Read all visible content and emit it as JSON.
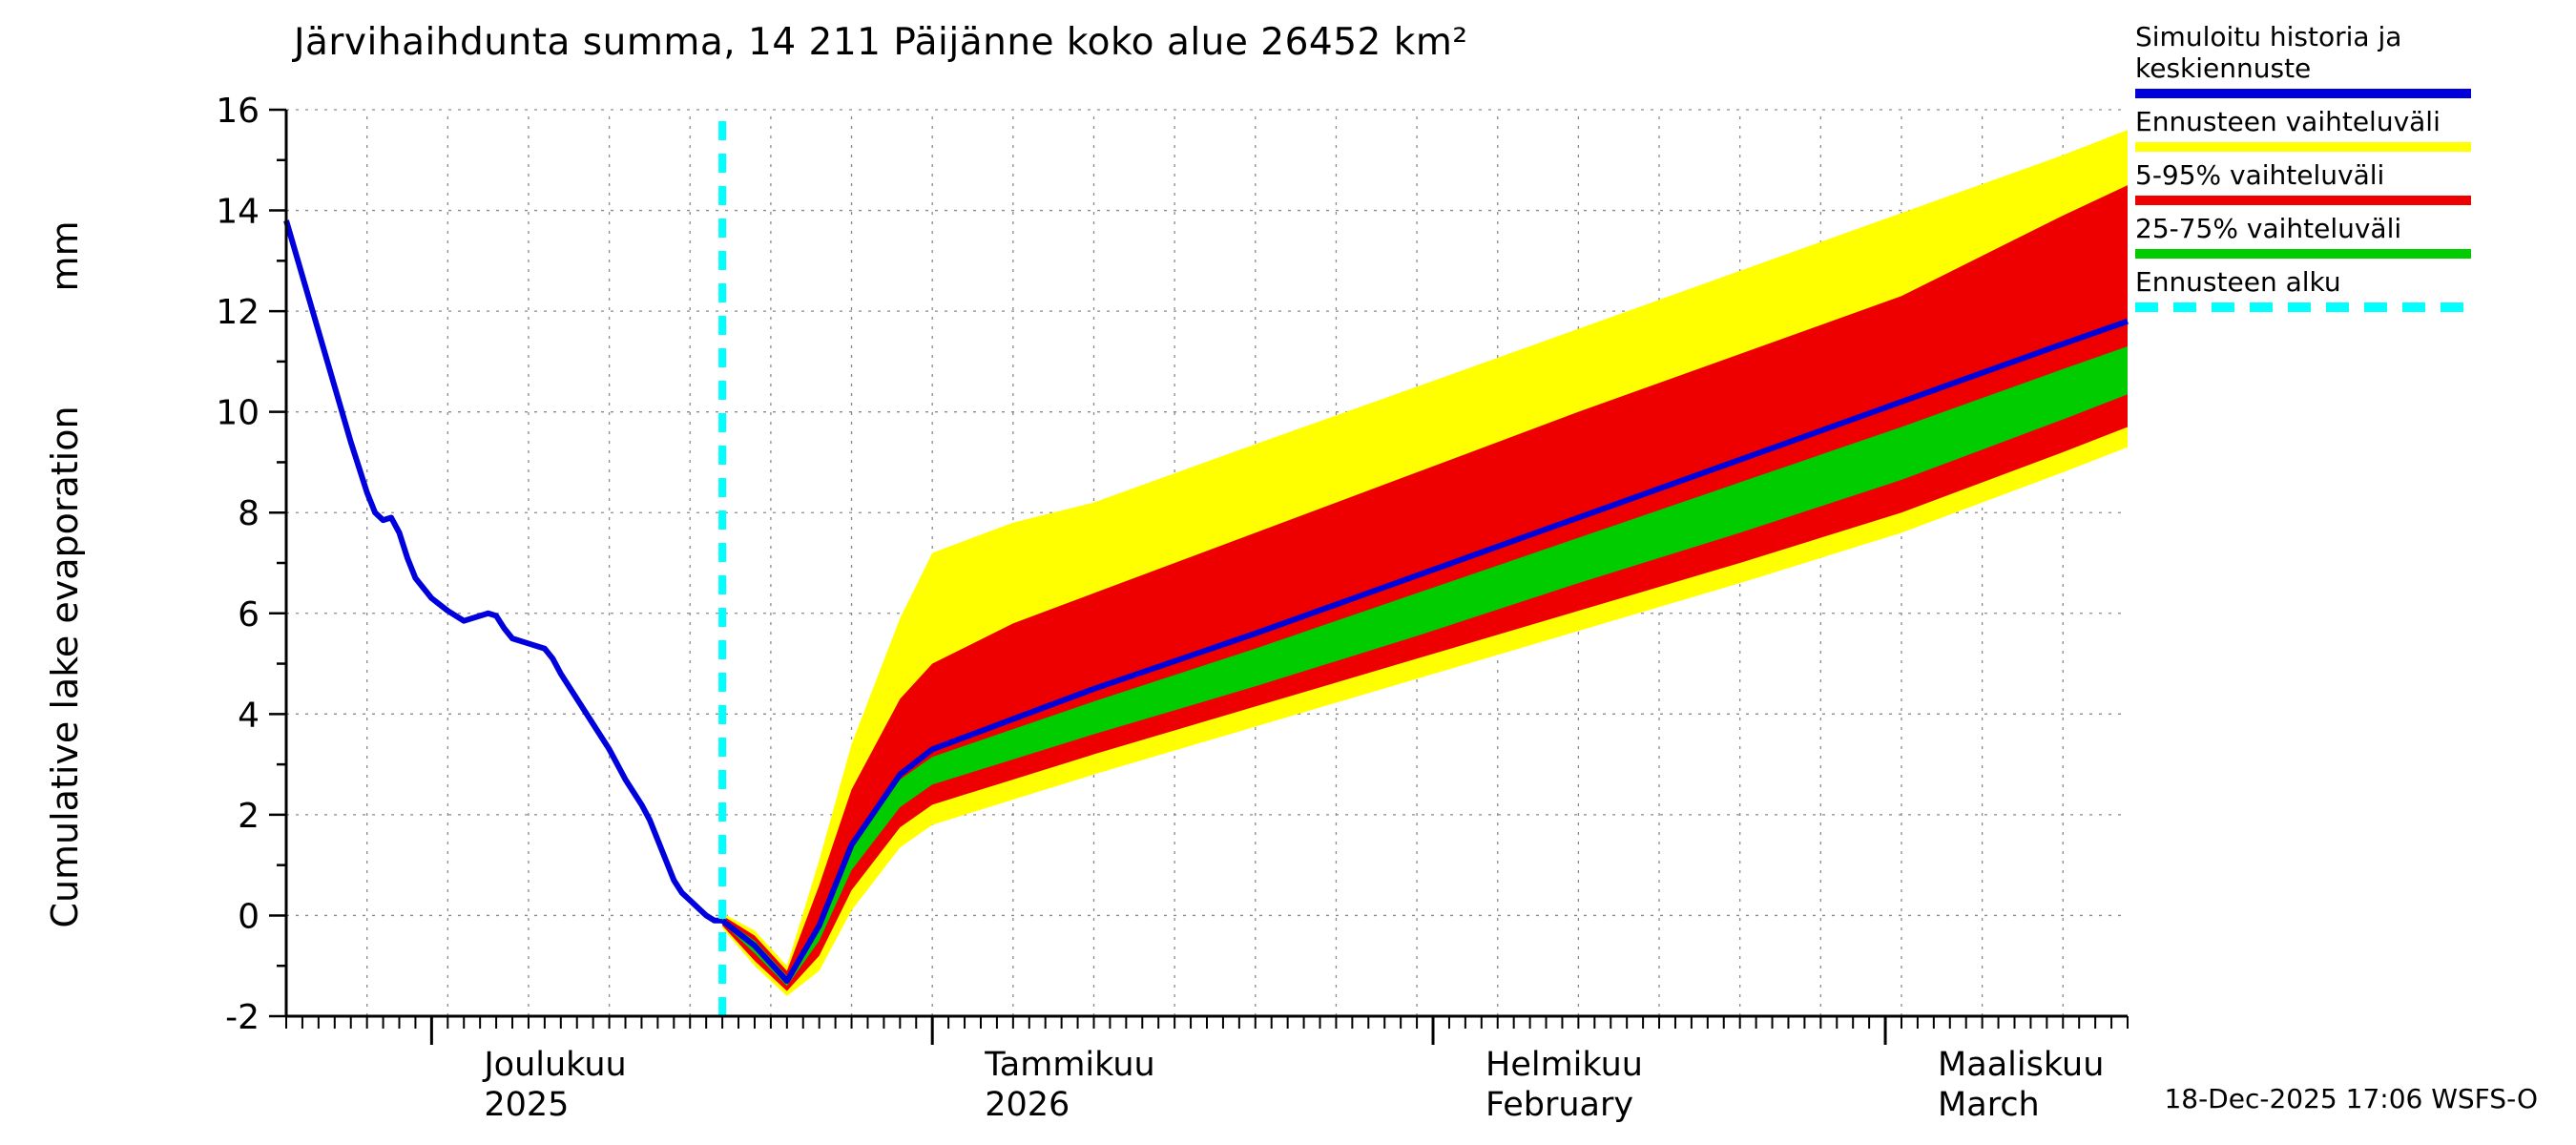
{
  "title": "Järvihaihdunta summa, 14 211 Päijänne koko alue 26452 km²",
  "timestamp": "18-Dec-2025 17:06 WSFS-O",
  "y_axis": {
    "label": "Cumulative lake evaporation",
    "unit": "mm"
  },
  "legend": {
    "items": [
      {
        "label": "Simuloitu historia ja keskiennuste",
        "color": "#0000dd",
        "style": "solid"
      },
      {
        "label": "Ennusteen vaihteluväli",
        "color": "#ffff00",
        "style": "solid"
      },
      {
        "label": "5-95% vaihteluväli",
        "color": "#ee0000",
        "style": "solid"
      },
      {
        "label": "25-75% vaihteluväli",
        "color": "#00cc00",
        "style": "solid"
      },
      {
        "label": "Ennusteen alku",
        "color": "#00ffff",
        "style": "dashed"
      }
    ]
  },
  "chart_data": {
    "type": "line",
    "title": "Järvihaihdunta summa, 14 211 Päijänne koko alue 26452 km²",
    "ylabel": "Cumulative lake evaporation",
    "y_unit": "mm",
    "y_range": [
      -2,
      16
    ],
    "y_tick_step": 2,
    "x_range_days": [
      0,
      114
    ],
    "x_gridline_step_days": 5,
    "forecast_start_day": 27,
    "months": [
      {
        "name": "Joulukuu",
        "sub": "2025",
        "start_day": 9
      },
      {
        "name": "Tammikuu",
        "sub": "2026",
        "start_day": 40
      },
      {
        "name": "Helmikuu",
        "sub": "February",
        "start_day": 71
      },
      {
        "name": "Maaliskuu",
        "sub": "March",
        "start_day": 99
      }
    ],
    "history_mm": [
      [
        0,
        13.8
      ],
      [
        1,
        12.7
      ],
      [
        2,
        11.6
      ],
      [
        3,
        10.5
      ],
      [
        4,
        9.4
      ],
      [
        5,
        8.4
      ],
      [
        5.5,
        8.0
      ],
      [
        6,
        7.85
      ],
      [
        6.5,
        7.9
      ],
      [
        7,
        7.6
      ],
      [
        7.5,
        7.1
      ],
      [
        8,
        6.7
      ],
      [
        9,
        6.3
      ],
      [
        10,
        6.05
      ],
      [
        11,
        5.85
      ],
      [
        12,
        5.95
      ],
      [
        12.5,
        6.0
      ],
      [
        13,
        5.95
      ],
      [
        13.5,
        5.7
      ],
      [
        14,
        5.5
      ],
      [
        15,
        5.4
      ],
      [
        16,
        5.3
      ],
      [
        16.5,
        5.1
      ],
      [
        17,
        4.8
      ],
      [
        18,
        4.3
      ],
      [
        19,
        3.8
      ],
      [
        20,
        3.3
      ],
      [
        21,
        2.7
      ],
      [
        22,
        2.2
      ],
      [
        22.5,
        1.9
      ],
      [
        23,
        1.5
      ],
      [
        23.5,
        1.1
      ],
      [
        24,
        0.7
      ],
      [
        24.5,
        0.45
      ],
      [
        25,
        0.3
      ],
      [
        25.5,
        0.15
      ],
      [
        26,
        0.0
      ],
      [
        26.5,
        -0.1
      ],
      [
        27,
        -0.1
      ]
    ],
    "forecast": {
      "days": [
        27,
        29,
        31,
        33,
        35,
        38,
        40,
        45,
        50,
        60,
        70,
        80,
        90,
        100,
        110,
        114
      ],
      "median": [
        -0.1,
        -0.6,
        -1.3,
        -0.2,
        1.4,
        2.8,
        3.3,
        3.9,
        4.5,
        5.6,
        6.75,
        7.9,
        9.05,
        10.2,
        11.35,
        11.8
      ],
      "p75": [
        -0.05,
        -0.5,
        -1.2,
        -0.1,
        1.4,
        2.7,
        3.15,
        3.7,
        4.25,
        5.3,
        6.4,
        7.5,
        8.6,
        9.7,
        10.85,
        11.3
      ],
      "p25": [
        -0.15,
        -0.75,
        -1.4,
        -0.5,
        0.9,
        2.15,
        2.6,
        3.1,
        3.6,
        4.55,
        5.55,
        6.6,
        7.6,
        8.65,
        9.85,
        10.35
      ],
      "p95": [
        0.0,
        -0.4,
        -1.1,
        0.6,
        2.5,
        4.3,
        5.0,
        5.8,
        6.4,
        7.6,
        8.8,
        10.0,
        11.15,
        12.3,
        13.9,
        14.5
      ],
      "p5": [
        -0.2,
        -0.9,
        -1.5,
        -0.8,
        0.5,
        1.75,
        2.2,
        2.7,
        3.2,
        4.15,
        5.1,
        6.05,
        7.0,
        8.0,
        9.2,
        9.7
      ],
      "max": [
        0.05,
        -0.3,
        -1.0,
        1.1,
        3.4,
        5.9,
        7.2,
        7.8,
        8.2,
        9.36,
        10.5,
        11.65,
        12.8,
        13.95,
        15.1,
        15.6
      ],
      "min": [
        -0.25,
        -1.0,
        -1.6,
        -1.1,
        0.1,
        1.35,
        1.8,
        2.3,
        2.8,
        3.75,
        4.7,
        5.65,
        6.6,
        7.6,
        8.8,
        9.3
      ]
    },
    "colors": {
      "history_and_median": "#0000dd",
      "forecast_range": "#ffff00",
      "band_5_95": "#ee0000",
      "band_25_75": "#00cc00",
      "forecast_start": "#00ffff",
      "grid": "#8a8a8a",
      "axis": "#000000"
    },
    "legend_position": "top-right",
    "grid": true
  }
}
